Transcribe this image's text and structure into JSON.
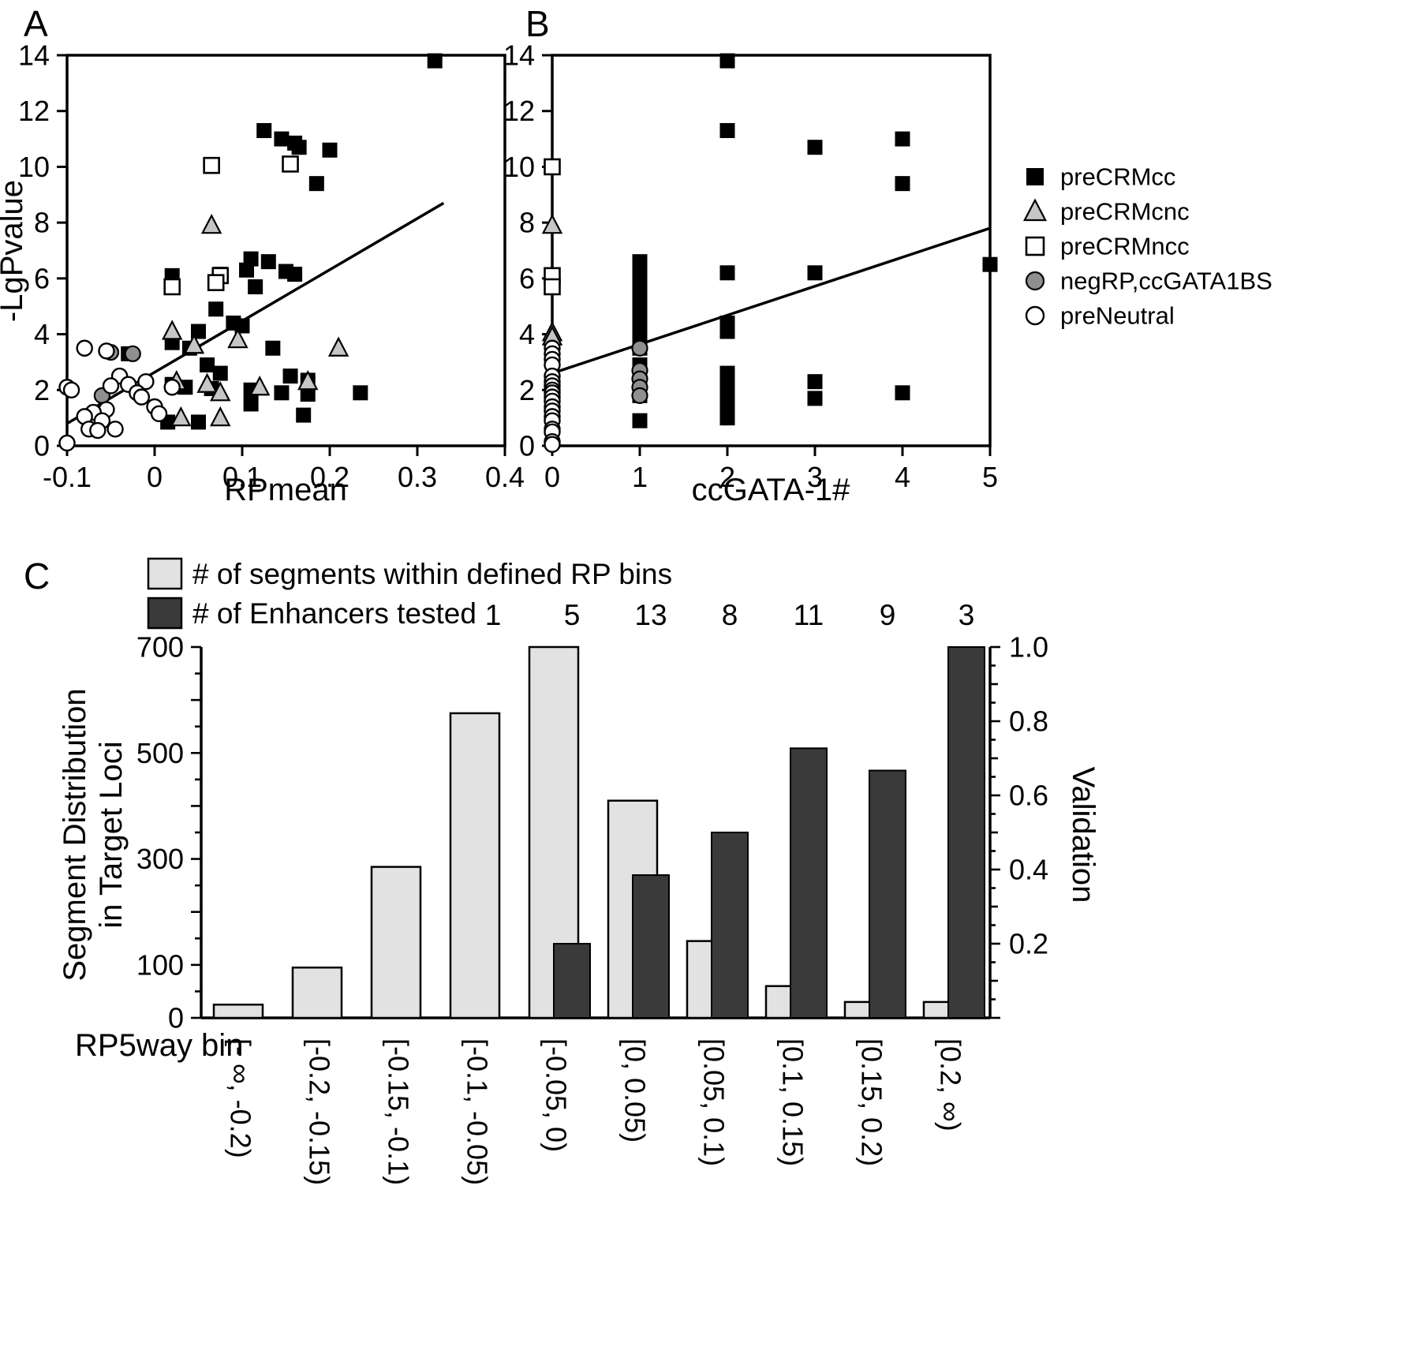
{
  "panels": {
    "a": {
      "label": "A"
    },
    "b": {
      "label": "B"
    },
    "c": {
      "label": "C"
    }
  },
  "legend": {
    "items": [
      {
        "label": "preCRMcc",
        "marker": "filled-square"
      },
      {
        "label": "preCRMcnc",
        "marker": "gray-triangle"
      },
      {
        "label": "preCRMncc",
        "marker": "open-square"
      },
      {
        "label": "negRP,ccGATA1BS",
        "marker": "gray-circle"
      },
      {
        "label": "preNeutral",
        "marker": "open-circle"
      }
    ]
  },
  "colors": {
    "black": "#000000",
    "light_bar": "#e2e2e2",
    "dark_bar": "#3a3a3a",
    "triangle_fill": "#c6c6c6",
    "gray_circle_fill": "#8f8f8f",
    "white": "#ffffff"
  },
  "chart_data": [
    {
      "id": "a",
      "type": "scatter",
      "xlabel": "RPmean",
      "ylabel": "-LgPvalue",
      "xlim": [
        -0.1,
        0.4
      ],
      "ylim": [
        0,
        14
      ],
      "xticks": [
        -0.1,
        0,
        0.1,
        0.2,
        0.3,
        0.4
      ],
      "xtick_labels": [
        "-0.1",
        "0",
        "0.1",
        "0.2",
        "0.3",
        "0.4"
      ],
      "yticks": [
        0,
        2,
        4,
        6,
        8,
        10,
        12,
        14
      ],
      "fit_line": [
        [
          -0.1,
          0.8
        ],
        [
          0.33,
          8.7
        ]
      ],
      "series": [
        {
          "name": "preCRMcc",
          "marker": "filled-square",
          "points": [
            [
              0.32,
              13.8
            ],
            [
              0.125,
              11.3
            ],
            [
              0.145,
              11.0
            ],
            [
              0.16,
              10.85
            ],
            [
              0.165,
              10.7
            ],
            [
              0.2,
              10.6
            ],
            [
              0.185,
              9.4
            ],
            [
              0.11,
              6.7
            ],
            [
              0.13,
              6.6
            ],
            [
              0.105,
              6.3
            ],
            [
              0.15,
              6.25
            ],
            [
              0.16,
              6.15
            ],
            [
              0.075,
              6.15
            ],
            [
              0.02,
              6.1
            ],
            [
              0.115,
              5.7
            ],
            [
              0.07,
              4.9
            ],
            [
              0.09,
              4.4
            ],
            [
              0.1,
              4.3
            ],
            [
              0.05,
              4.1
            ],
            [
              0.02,
              3.7
            ],
            [
              0.04,
              3.5
            ],
            [
              0.135,
              3.5
            ],
            [
              -0.03,
              3.3
            ],
            [
              0.06,
              2.9
            ],
            [
              0.075,
              2.6
            ],
            [
              0.155,
              2.5
            ],
            [
              0.175,
              2.35
            ],
            [
              0.02,
              2.2
            ],
            [
              0.035,
              2.1
            ],
            [
              0.065,
              2.05
            ],
            [
              0.11,
              2.0
            ],
            [
              0.145,
              1.9
            ],
            [
              0.235,
              1.9
            ],
            [
              0.175,
              1.85
            ],
            [
              0.11,
              1.5
            ],
            [
              0.17,
              1.1
            ],
            [
              0.015,
              0.85
            ],
            [
              0.05,
              0.85
            ]
          ]
        },
        {
          "name": "preCRMcnc",
          "marker": "gray-triangle",
          "points": [
            [
              0.065,
              7.9
            ],
            [
              0.02,
              4.1
            ],
            [
              0.095,
              3.8
            ],
            [
              0.045,
              3.6
            ],
            [
              0.21,
              3.5
            ],
            [
              0.025,
              2.3
            ],
            [
              0.175,
              2.3
            ],
            [
              0.06,
              2.2
            ],
            [
              0.12,
              2.1
            ],
            [
              0.075,
              1.9
            ],
            [
              0.03,
              1.0
            ],
            [
              0.075,
              1.0
            ]
          ]
        },
        {
          "name": "preCRMncc",
          "marker": "open-square",
          "points": [
            [
              0.065,
              10.05
            ],
            [
              0.155,
              10.1
            ],
            [
              0.075,
              6.1
            ],
            [
              0.07,
              5.85
            ],
            [
              0.02,
              5.7
            ]
          ]
        },
        {
          "name": "negRP,ccGATA1BS",
          "marker": "gray-circle",
          "points": [
            [
              -0.05,
              3.35
            ],
            [
              -0.025,
              3.3
            ],
            [
              -0.06,
              1.8
            ],
            [
              -0.02,
              2.0
            ]
          ]
        },
        {
          "name": "preNeutral",
          "marker": "open-circle",
          "points": [
            [
              -0.08,
              3.5
            ],
            [
              -0.055,
              3.4
            ],
            [
              -0.04,
              2.5
            ],
            [
              -0.01,
              2.3
            ],
            [
              -0.03,
              2.2
            ],
            [
              -0.05,
              2.15
            ],
            [
              -0.1,
              2.1
            ],
            [
              0.02,
              2.1
            ],
            [
              -0.095,
              2.0
            ],
            [
              -0.02,
              1.9
            ],
            [
              -0.015,
              1.75
            ],
            [
              0.0,
              1.4
            ],
            [
              -0.055,
              1.3
            ],
            [
              -0.07,
              1.2
            ],
            [
              0.005,
              1.15
            ],
            [
              -0.08,
              1.05
            ],
            [
              -0.06,
              0.9
            ],
            [
              -0.075,
              0.6
            ],
            [
              -0.045,
              0.6
            ],
            [
              -0.065,
              0.55
            ],
            [
              -0.1,
              0.1
            ]
          ]
        }
      ]
    },
    {
      "id": "b",
      "type": "scatter",
      "xlabel": "ccGATA-1#",
      "ylabel": "",
      "xlim": [
        0,
        5
      ],
      "ylim": [
        0,
        14
      ],
      "xticks": [
        0,
        1,
        2,
        3,
        4,
        5
      ],
      "xtick_labels": [
        "0",
        "1",
        "2",
        "3",
        "4",
        "5"
      ],
      "yticks": [
        0,
        2,
        4,
        6,
        8,
        10,
        12,
        14
      ],
      "fit_line": [
        [
          0,
          2.6
        ],
        [
          5,
          7.8
        ]
      ],
      "series": [
        {
          "name": "preCRMcc",
          "marker": "filled-square",
          "points": [
            [
              1,
              6.6
            ],
            [
              1,
              6.4
            ],
            [
              1,
              6.2
            ],
            [
              1,
              6.0
            ],
            [
              1,
              5.7
            ],
            [
              1,
              5.2
            ],
            [
              1,
              4.9
            ],
            [
              1,
              4.4
            ],
            [
              1,
              4.1
            ],
            [
              1,
              3.8
            ],
            [
              1,
              3.5
            ],
            [
              1,
              2.9
            ],
            [
              1,
              2.6
            ],
            [
              1,
              2.3
            ],
            [
              1,
              2.1
            ],
            [
              1,
              1.8
            ],
            [
              1,
              0.9
            ],
            [
              2,
              13.8
            ],
            [
              2,
              11.3
            ],
            [
              2,
              6.2
            ],
            [
              2,
              4.4
            ],
            [
              2,
              4.1
            ],
            [
              2,
              2.6
            ],
            [
              2,
              2.3
            ],
            [
              2,
              2.0
            ],
            [
              2,
              1.7
            ],
            [
              2,
              1.4
            ],
            [
              2,
              1.0
            ],
            [
              3,
              10.7
            ],
            [
              3,
              6.2
            ],
            [
              3,
              2.3
            ],
            [
              3,
              1.7
            ],
            [
              4,
              11.0
            ],
            [
              4,
              9.4
            ],
            [
              4,
              1.9
            ],
            [
              5,
              6.5
            ]
          ]
        },
        {
          "name": "preCRMcnc",
          "marker": "gray-triangle",
          "points": [
            [
              0,
              7.9
            ],
            [
              0,
              4.05
            ],
            [
              0,
              3.9
            ]
          ]
        },
        {
          "name": "preCRMncc",
          "marker": "open-square",
          "points": [
            [
              0,
              10.0
            ],
            [
              0,
              6.1
            ],
            [
              0,
              5.7
            ]
          ]
        },
        {
          "name": "negRP,ccGATA1BS",
          "marker": "gray-circle",
          "points": [
            [
              1,
              3.5
            ],
            [
              1,
              2.7
            ],
            [
              1,
              2.4
            ],
            [
              1,
              2.1
            ],
            [
              1,
              1.8
            ]
          ]
        },
        {
          "name": "preNeutral",
          "marker": "open-circle",
          "points": [
            [
              0,
              3.5
            ],
            [
              0,
              3.3
            ],
            [
              0,
              3.1
            ],
            [
              0,
              2.9
            ],
            [
              0,
              2.5
            ],
            [
              0,
              2.3
            ],
            [
              0,
              2.15
            ],
            [
              0,
              2.0
            ],
            [
              0,
              1.9
            ],
            [
              0,
              1.75
            ],
            [
              0,
              1.6
            ],
            [
              0,
              1.4
            ],
            [
              0,
              1.25
            ],
            [
              0,
              1.05
            ],
            [
              0,
              0.9
            ],
            [
              0,
              0.6
            ],
            [
              0,
              0.5
            ],
            [
              0,
              0.15
            ],
            [
              0,
              0.05
            ]
          ]
        }
      ]
    },
    {
      "id": "c",
      "type": "bar",
      "xlabel": "RP5way bin",
      "categories": [
        "[- ∞, -0.2)",
        "[-0.2, -0.15)",
        "[-0.15, -0.1)",
        "[-0.1, -0.05)",
        "[-0.05, 0)",
        "[0, 0.05)",
        "[0.05, 0.1)",
        "[0.1, 0.15)",
        "[0.15, 0.2)",
        "[0.2, ∞)"
      ],
      "series_labels": {
        "segments": "# of segments within defined RP bins",
        "enhancers": "# of Enhancers tested"
      },
      "segments": [
        25,
        95,
        285,
        575,
        700,
        410,
        145,
        60,
        30,
        30
      ],
      "validation": [
        0,
        0,
        0,
        0,
        0.2,
        0.385,
        0.5,
        0.727,
        0.667,
        1.0
      ],
      "enhancers_tested": [
        null,
        null,
        null,
        1,
        5,
        13,
        8,
        11,
        9,
        3
      ],
      "left_axis": {
        "label_line1": "Segment Distribution",
        "label_line2": "in Target Loci",
        "ylim": [
          0,
          700
        ],
        "tick_labels": [
          "0",
          "100",
          "300",
          "500",
          "700"
        ]
      },
      "right_axis": {
        "label": "Validation",
        "ylim": [
          0,
          1
        ],
        "tick_labels": [
          "0.2",
          "0.4",
          "0.6",
          "0.8",
          "1.0"
        ]
      }
    }
  ]
}
